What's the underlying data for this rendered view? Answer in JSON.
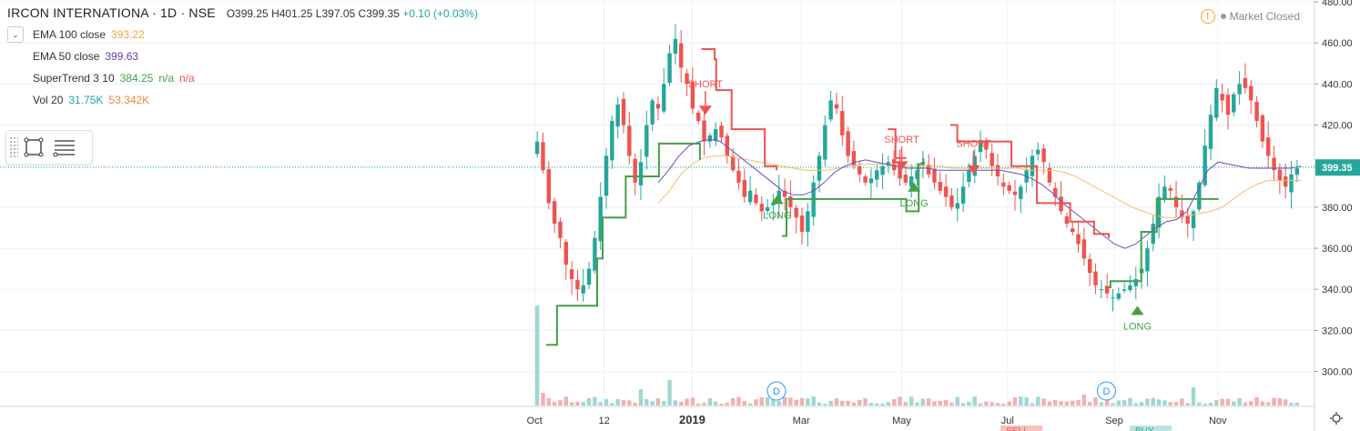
{
  "header": {
    "symbol": "IRCON INTERNATIONA · 1D · NSE",
    "open": "O399.25",
    "high": "H401.25",
    "low": "L397.05",
    "close": "C399.35",
    "change": "+0.10 (+0.03%)"
  },
  "status": {
    "text": "Market Closed"
  },
  "indicators": [
    {
      "name": "EMA 100 close",
      "values": [
        {
          "text": "393.22",
          "color": "#f2a93b"
        }
      ]
    },
    {
      "name": "EMA 50 close",
      "values": [
        {
          "text": "399.63",
          "color": "#673ab7"
        }
      ]
    },
    {
      "name": "SuperTrend 3 10",
      "values": [
        {
          "text": "384.25",
          "color": "#43a047"
        },
        {
          "text": "n/a",
          "color": "#43a047"
        },
        {
          "text": "n/a",
          "color": "#ef5350"
        }
      ]
    },
    {
      "name": "Vol 20",
      "values": [
        {
          "text": "31.75K",
          "color": "#26a69a"
        },
        {
          "text": "53.342K",
          "color": "#ef8a3c"
        }
      ]
    }
  ],
  "icons": {
    "collapse": "chevron-down-icon",
    "rectangle": "rectangle-tool-icon",
    "menu": "settings-lines-icon",
    "warning": "warning-icon",
    "zoom": "zoom-icon"
  },
  "colors": {
    "up": "#26a69a",
    "down": "#ef5350",
    "ema100": "#f2c06b",
    "ema50": "#6a4fc2",
    "st_long": "#43a047",
    "st_short": "#ef5350",
    "last": "#26a69a"
  },
  "chart_data": {
    "type": "candlestick",
    "x_labels": [
      "Oct",
      "12",
      "2019",
      "Mar",
      "May",
      "Jul",
      "Sep",
      "Nov"
    ],
    "y_ticks": [
      "480.00",
      "460.00",
      "440.00",
      "420.00",
      "400.00",
      "380.00",
      "360.00",
      "340.00",
      "320.00",
      "300.00"
    ],
    "ylim": [
      283,
      480
    ],
    "last_price": "399.35",
    "close_series": [
      412,
      398,
      382,
      372,
      365,
      352,
      345,
      340,
      342,
      350,
      365,
      385,
      405,
      422,
      430,
      420,
      405,
      392,
      402,
      420,
      432,
      428,
      440,
      455,
      462,
      448,
      440,
      428,
      422,
      412,
      415,
      418,
      414,
      405,
      398,
      392,
      385,
      388,
      382,
      378,
      380,
      382,
      388,
      385,
      380,
      375,
      368,
      378,
      392,
      405,
      420,
      432,
      428,
      415,
      405,
      400,
      396,
      392,
      394,
      398,
      400,
      402,
      398,
      394,
      392,
      395,
      398,
      402,
      396,
      392,
      388,
      385,
      380,
      382,
      390,
      398,
      405,
      412,
      408,
      400,
      395,
      390,
      388,
      386,
      390,
      398,
      405,
      408,
      402,
      392,
      385,
      378,
      372,
      368,
      362,
      355,
      348,
      342,
      340,
      338,
      336,
      338,
      340,
      342,
      345,
      350,
      360,
      372,
      385,
      390,
      388,
      380,
      375,
      372,
      378,
      392,
      410,
      425,
      438,
      432,
      425,
      435,
      440,
      438,
      432,
      422,
      412,
      405,
      398,
      393,
      390,
      396,
      399
    ],
    "ema50_series": [
      392,
      398,
      405,
      410,
      412,
      413,
      412,
      408,
      404,
      400,
      396,
      392,
      388,
      386,
      386,
      388,
      392,
      397,
      400,
      402,
      403,
      402,
      401,
      400,
      399,
      399,
      399,
      398,
      398,
      398,
      398,
      398,
      398,
      398,
      397,
      396,
      394,
      391,
      387,
      382,
      378,
      374,
      370,
      366,
      362,
      360,
      362,
      366,
      370,
      373,
      374,
      378,
      388,
      398,
      402,
      401,
      400,
      399,
      399,
      399,
      399,
      399,
      400
    ],
    "ema100_series": [
      382,
      388,
      396,
      401,
      404,
      405,
      405,
      404,
      403,
      402,
      401,
      400,
      399,
      398,
      398,
      398,
      399,
      400,
      401,
      401,
      401,
      401,
      400,
      400,
      400,
      400,
      399,
      399,
      399,
      399,
      399,
      399,
      399,
      398,
      398,
      398,
      397,
      395,
      392,
      389,
      386,
      383,
      380,
      378,
      376,
      375,
      375,
      376,
      377,
      378,
      380,
      384,
      388,
      391,
      393,
      393,
      393,
      393
    ],
    "supertrend": {
      "long_segments": [
        [
          [
            0.02,
            313
          ],
          [
            0.034,
            332
          ],
          [
            0.069,
            332
          ],
          [
            0.086,
            355
          ],
          [
            0.093,
            375
          ],
          [
            0.117,
            375
          ],
          [
            0.123,
            395
          ],
          [
            0.165,
            395
          ],
          [
            0.166,
            411
          ],
          [
            0.205,
            411
          ],
          [
            0.219,
            403
          ]
        ],
        [
          [
            0.325,
            366
          ],
          [
            0.331,
            384
          ],
          [
            0.475,
            384
          ],
          [
            0.486,
            378
          ],
          [
            0.502,
            401
          ],
          [
            0.508,
            404
          ]
        ],
        [
          [
            0.748,
            341
          ],
          [
            0.75,
            344
          ],
          [
            0.767,
            344
          ],
          [
            0.79,
            368
          ],
          [
            0.81,
            384
          ],
          [
            0.89,
            384
          ]
        ]
      ],
      "short_segments": [
        [
          [
            0.221,
            457
          ],
          [
            0.238,
            452
          ],
          [
            0.24,
            437
          ],
          [
            0.256,
            437
          ],
          [
            0.26,
            418
          ],
          [
            0.296,
            418
          ],
          [
            0.303,
            400
          ],
          [
            0.318,
            398
          ]
        ],
        [
          [
            0.462,
            418
          ],
          [
            0.472,
            404
          ],
          [
            0.486,
            404
          ]
        ],
        [
          [
            0.543,
            420
          ],
          [
            0.552,
            412
          ],
          [
            0.615,
            412
          ],
          [
            0.622,
            400
          ],
          [
            0.655,
            382
          ],
          [
            0.698,
            373
          ],
          [
            0.729,
            367
          ],
          [
            0.748,
            365
          ]
        ]
      ]
    },
    "signals": [
      {
        "type": "SHORT",
        "x": 0.226,
        "price": 425
      },
      {
        "type": "LONG",
        "x": 0.319,
        "price": 386
      },
      {
        "type": "SHORT",
        "x": 0.48,
        "price": 398
      },
      {
        "type": "LONG",
        "x": 0.496,
        "price": 392
      },
      {
        "type": "SHORT",
        "x": 0.573,
        "price": 396
      },
      {
        "type": "LONG",
        "x": 0.785,
        "price": 332
      }
    ],
    "dividends": [
      "D",
      "D"
    ],
    "bottom_labels": [
      "SELL",
      "BUY"
    ]
  }
}
